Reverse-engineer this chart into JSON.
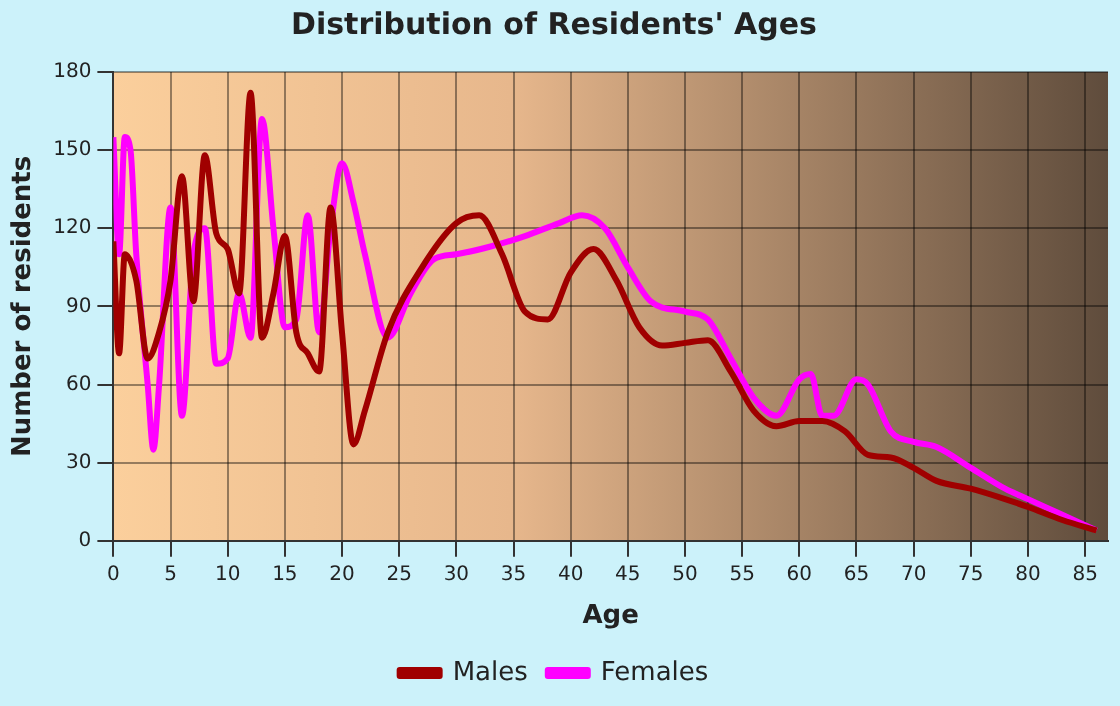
{
  "chart_data": {
    "type": "line",
    "title": "Distribution of Residents' Ages",
    "xlabel": "Age",
    "ylabel": "Number of residents",
    "xlim": [
      0,
      87
    ],
    "xticks": [
      0,
      5,
      10,
      15,
      20,
      25,
      30,
      35,
      40,
      45,
      50,
      55,
      60,
      65,
      70,
      75,
      80,
      85
    ],
    "ylim": [
      0,
      180
    ],
    "yticks": [
      0,
      30,
      60,
      90,
      120,
      150,
      180
    ],
    "grid": true,
    "legend": "bottom",
    "marker": "none",
    "line_style": "solid",
    "series": [
      {
        "name": "Males",
        "color": "#a00000",
        "x": [
          0,
          0.5,
          1,
          2,
          3,
          4,
          5,
          6,
          7,
          8,
          9,
          10,
          11,
          12,
          13,
          14,
          15,
          16,
          17,
          18,
          19,
          20,
          21,
          22,
          24,
          27,
          30,
          32,
          34,
          36,
          38,
          40,
          42,
          44,
          46,
          48,
          50,
          52,
          54,
          56,
          58,
          60,
          62,
          64,
          66,
          68,
          70,
          72,
          75,
          78,
          80,
          83,
          86
        ],
        "values": [
          115,
          72,
          110,
          100,
          70,
          80,
          100,
          140,
          92,
          148,
          118,
          112,
          95,
          172,
          78,
          95,
          117,
          80,
          72,
          65,
          128,
          80,
          37,
          50,
          80,
          105,
          122,
          125,
          110,
          88,
          85,
          103,
          112,
          100,
          82,
          75,
          76,
          77,
          65,
          50,
          44,
          46,
          46,
          42,
          33,
          32,
          28,
          23,
          20,
          16,
          13,
          8,
          4
        ]
      },
      {
        "name": "Females",
        "color": "#ff00ff",
        "x": [
          0,
          0.5,
          1,
          1.5,
          2,
          3,
          3.5,
          4,
          5,
          6,
          7,
          8,
          9,
          10,
          11,
          12,
          13,
          14,
          15,
          16,
          17,
          18,
          19,
          20,
          21,
          22,
          24,
          26,
          28,
          30,
          33,
          36,
          39,
          41,
          43,
          45,
          47,
          50,
          52,
          54,
          56,
          58,
          60,
          61,
          62,
          63,
          65,
          66,
          68,
          70,
          72,
          75,
          78,
          80,
          83,
          86
        ],
        "values": [
          155,
          110,
          155,
          150,
          110,
          60,
          35,
          60,
          128,
          48,
          110,
          120,
          68,
          70,
          95,
          78,
          162,
          120,
          82,
          85,
          125,
          80,
          120,
          145,
          130,
          110,
          78,
          95,
          108,
          110,
          113,
          117,
          122,
          125,
          120,
          105,
          92,
          88,
          85,
          70,
          55,
          48,
          62,
          64,
          48,
          48,
          62,
          60,
          42,
          38,
          36,
          28,
          20,
          16,
          10,
          4
        ]
      }
    ]
  }
}
